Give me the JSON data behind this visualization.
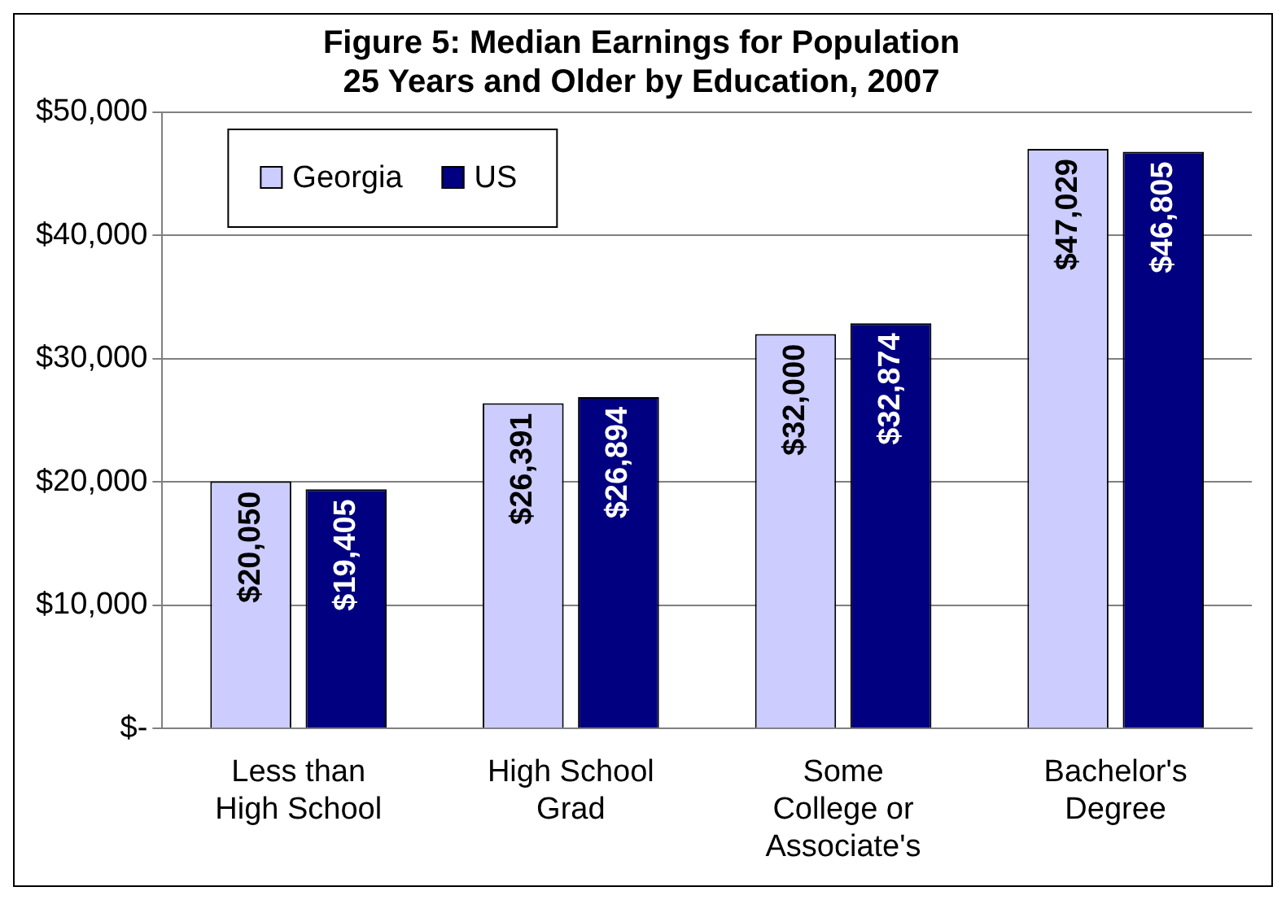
{
  "chart_data": {
    "type": "bar",
    "title": "Figure 5: Median Earnings for Population 25 Years and Older by Education, 2007",
    "categories": [
      "Less than High School",
      "High School Grad",
      "Some College or Associate's",
      "Bachelor's Degree"
    ],
    "series": [
      {
        "name": "Georgia",
        "color": "#ccccff",
        "values": [
          20050,
          26391,
          32000,
          47029
        ],
        "value_labels": [
          "$20,050",
          "$26,391",
          "$32,000",
          "$47,029"
        ]
      },
      {
        "name": "US",
        "color": "#000080",
        "values": [
          19405,
          26894,
          32874,
          46805
        ],
        "value_labels": [
          "$19,405",
          "$26,894",
          "$32,874",
          "$46,805"
        ]
      }
    ],
    "ylim": [
      0,
      50000
    ],
    "yticks": [
      {
        "value": 0,
        "label": "$-"
      },
      {
        "value": 10000,
        "label": "$10,000"
      },
      {
        "value": 20000,
        "label": "$20,000"
      },
      {
        "value": 30000,
        "label": "$30,000"
      },
      {
        "value": 40000,
        "label": "$40,000"
      },
      {
        "value": 50000,
        "label": "$50,000"
      }
    ],
    "grid": "y",
    "legend": "top left"
  }
}
